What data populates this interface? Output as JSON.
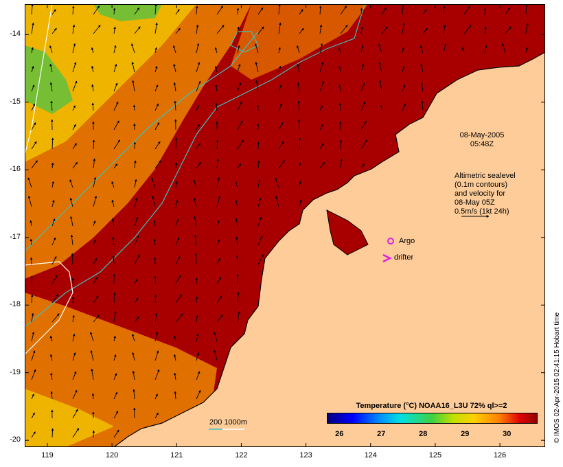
{
  "map": {
    "timestamp_line1": "08-May-2005",
    "timestamp_line2": "05:48Z",
    "altimetry_lines": [
      "Altimetric sealevel",
      "(0.1m contours)",
      "and velocity for",
      "08-May 05Z",
      "0.5m/s (1kt 24h)"
    ],
    "argo_label": "Argo",
    "drifter_label": "drifter",
    "depth_legend": "200  1000m",
    "lat_ticks": [
      "-14",
      "-15",
      "-16",
      "-17",
      "-18",
      "-19",
      "-20"
    ],
    "lon_ticks": [
      "119",
      "120",
      "121",
      "122",
      "123",
      "124",
      "125",
      "126"
    ],
    "lat_range": [
      -20.1,
      -13.55
    ],
    "lon_range": [
      118.65,
      126.7
    ],
    "stamp": "© IMOS 02-Apr-2015 02:41:15 Hobart time"
  },
  "colorbar": {
    "title": "Temperature (°C) NOAA16_L3U 72% ql>=2",
    "ticks": [
      "26",
      "27",
      "28",
      "29",
      "30"
    ],
    "range": [
      25.7,
      30.7
    ]
  },
  "colors": {
    "land": "#fdcc99",
    "warm_sea": "#a80000",
    "orange_sea": "#e07000",
    "yellow_sea": "#f0c000",
    "green_patch": "#58c040",
    "contour_200": "#40c0c0",
    "contour_1000": "#ffffff",
    "argo": "#e020e0"
  }
}
